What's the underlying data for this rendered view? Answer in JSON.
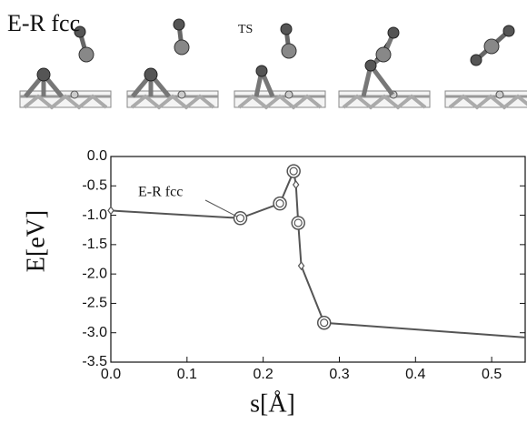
{
  "chart_data": {
    "type": "line",
    "title": "E-R  fcc",
    "annotations": [
      {
        "text": "TS"
      },
      {
        "text": "E-R  fcc"
      }
    ],
    "xlabel": "s[Å]",
    "ylabel": "E[eV]",
    "x": [
      0,
      0.17,
      0.222,
      0.24,
      0.243,
      0.246,
      0.25,
      0.28,
      0.544
    ],
    "series": [
      {
        "name": "E-R fcc",
        "color": "#555555",
        "values": [
          -0.92,
          -1.05,
          -0.8,
          -0.25,
          -0.48,
          -1.13,
          -1.86,
          -2.83,
          -3.08
        ],
        "markers": [
          "diamond",
          "circle",
          "circle",
          "circle",
          "diamond",
          "circle",
          "diamond",
          "circle",
          null
        ]
      }
    ],
    "xlim": [
      0,
      0.544
    ],
    "ylim": [
      -3.5,
      0
    ],
    "xticks": [
      {
        "value": 0,
        "label": "0.0"
      },
      0.1,
      0.2,
      0.3,
      0.4,
      0.5
    ],
    "yticks": [
      {
        "value": 0,
        "label": "0.0"
      },
      -0.5,
      {
        "value": -1,
        "label": "-1.0"
      },
      -1.5,
      {
        "value": -2,
        "label": "-2.0"
      },
      -2.5,
      {
        "value": -3,
        "label": "-3.0"
      },
      -3.5
    ]
  }
}
